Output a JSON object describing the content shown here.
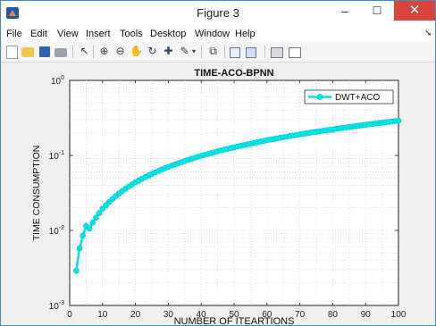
{
  "window": {
    "title": "Figure 3",
    "min_glyph": "–",
    "max_glyph": "☐",
    "close_glyph": "✕"
  },
  "menu": [
    "File",
    "Edit",
    "View",
    "Insert",
    "Tools",
    "Desktop",
    "Window",
    "Help"
  ],
  "menu_more": "➘",
  "toolbar_icons": [
    "new-figure-icon",
    "open-icon",
    "save-icon",
    "print-icon",
    "arrow-pointer-icon",
    "zoom-in-icon",
    "zoom-out-icon",
    "pan-hand-icon",
    "rotate-3d-icon",
    "data-cursor-icon",
    "brush-icon",
    "dropdown-arrow-icon",
    "link-plot-icon",
    "colorbar-icon",
    "legend-icon",
    "hide-plot-tools-icon",
    "show-plot-tools-icon"
  ],
  "chart_data": {
    "type": "line",
    "title": "TIME-ACO-BPNN",
    "xlabel": "NUMBER OF ITEARTIONS",
    "ylabel": "TIME CONSUMPTION",
    "xlim": [
      0,
      100
    ],
    "ylim": [
      0.001,
      1
    ],
    "yscale": "log",
    "x_ticks": [
      "0",
      "10",
      "20",
      "30",
      "40",
      "50",
      "60",
      "70",
      "80",
      "90",
      "100"
    ],
    "y_ticks": [
      {
        "base": "10",
        "exp": "0"
      },
      {
        "base": "10",
        "exp": "-1"
      },
      {
        "base": "10",
        "exp": "-2"
      },
      {
        "base": "10",
        "exp": "-3"
      }
    ],
    "grid": "minor dotted",
    "legend": "top-right",
    "series": [
      {
        "name": "DWT+ACO",
        "color": "#00e5e5",
        "marker": "circle",
        "x_start": 2,
        "x_end": 100,
        "y_start": 0.0029,
        "y_end": 0.29,
        "model": "y = 0.0029 * (x/2)^1.183",
        "sample_points": [
          {
            "x": 2,
            "y": 0.0029
          },
          {
            "x": 3,
            "y": 0.0058
          },
          {
            "x": 4,
            "y": 0.0085
          },
          {
            "x": 5,
            "y": 0.0115
          },
          {
            "x": 10,
            "y": 0.0195
          },
          {
            "x": 20,
            "y": 0.044
          },
          {
            "x": 40,
            "y": 0.099
          },
          {
            "x": 60,
            "y": 0.16
          },
          {
            "x": 80,
            "y": 0.22
          },
          {
            "x": 100,
            "y": 0.29
          }
        ]
      }
    ]
  }
}
